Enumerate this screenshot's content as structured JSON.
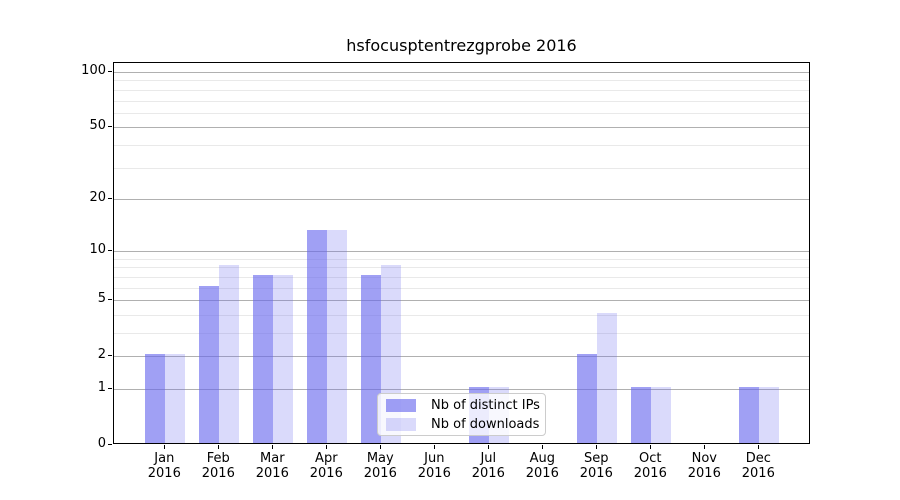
{
  "title": "hsfocusptentrezgprobe 2016",
  "chart_data": {
    "type": "bar",
    "title": "hsfocusptentrezgprobe 2016",
    "categories": [
      "Jan 2016",
      "Feb 2016",
      "Mar 2016",
      "Apr 2016",
      "May 2016",
      "Jun 2016",
      "Jul 2016",
      "Aug 2016",
      "Sep 2016",
      "Oct 2016",
      "Nov 2016",
      "Dec 2016"
    ],
    "series": [
      {
        "name": "Nb of distinct IPs",
        "color": "#6666ee",
        "alpha": 0.62,
        "values": [
          2,
          6,
          7,
          13,
          7,
          0,
          1,
          0,
          2,
          1,
          0,
          1
        ]
      },
      {
        "name": "Nb of downloads",
        "color": "#6666ee",
        "alpha": 0.24,
        "values": [
          2,
          8,
          7,
          13,
          8,
          0,
          1,
          0,
          4,
          1,
          0,
          1
        ]
      }
    ],
    "xlabel": "",
    "ylabel": "",
    "yscale": "log1p",
    "ylim": [
      0,
      112
    ],
    "yticks_major": [
      0,
      1,
      2,
      5,
      10,
      20,
      50,
      100
    ],
    "ytick_labels": [
      "0",
      "1",
      "2",
      "5",
      "10",
      "20",
      "50",
      "100"
    ],
    "yticks_minor": [
      3,
      4,
      6,
      7,
      8,
      9,
      30,
      40,
      60,
      70,
      80,
      90
    ],
    "grid": true,
    "legend_position": "lower-center"
  },
  "colors": {
    "bar_base": "#6666ee",
    "grid_major": "#b0b0b0",
    "grid_minor": "#e9e9e9",
    "spine": "#000000",
    "legend_border": "#cccccc"
  }
}
